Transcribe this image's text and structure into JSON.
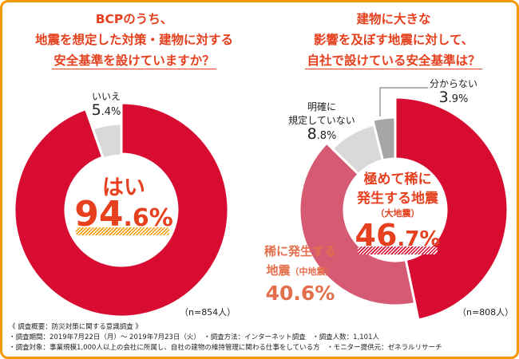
{
  "left": {
    "title": [
      "BCPのうち、",
      "地震を想定した対策・建物に対する",
      "安全基準を設けていますか？"
    ],
    "center_label": "はい",
    "center_value_int": "94",
    "center_value_dec": ".6%",
    "no_label": "いいえ",
    "no_value_int": "5",
    "no_value_dec": ".4%",
    "n": "（n=854人）"
  },
  "right": {
    "title": [
      "建物に大きな",
      "影響を及ぼす地震に対して、",
      "自社で設けている安全基準は？"
    ],
    "center_label_1": "極めて稀に",
    "center_label_2": "発生する地震",
    "center_label_3": "（大地震）",
    "center_value_int": "46",
    "center_value_dec": ".7%",
    "mid_label_1": "稀に発生する",
    "mid_label_2": "地震",
    "mid_label_3": "（中地震）",
    "mid_value": "40.6%",
    "unclear_label_1": "明確に",
    "unclear_label_2": "規定していない",
    "unclear_value_int": "8",
    "unclear_value_dec": ".8%",
    "unknown_label": "分からない",
    "unknown_value_int": "3",
    "unknown_value_dec": ".9%",
    "n": "（n=808人）"
  },
  "notes": [
    "《 調査概要：防災対策に関する意識調査 》",
    "・調査期間：2019年7月22日（月）～ 2019年7月23日（火）　・調査方法：インターネット調査　・調査人数：1,101人",
    "・調査対象：事業規模1,000人以上の会社に所属し、自社の建物の維持管理に関わる仕事をしている方　・モニター提供元：ゼネラルリサーチ"
  ],
  "colors": {
    "accent": "#e6401f",
    "border": "#f39800",
    "red": "#d70c30",
    "pink": "#d65a72",
    "light_gray": "#d9d9d9",
    "gray": "#a6a6a6"
  },
  "chart_data": [
    {
      "type": "pie",
      "title": "BCPのうち、地震を想定した対策・建物に対する安全基準を設けていますか？",
      "categories": [
        "はい",
        "いいえ"
      ],
      "values": [
        94.6,
        5.4
      ],
      "colors": [
        "#d70c30",
        "#d9d9d9"
      ],
      "n": 854
    },
    {
      "type": "pie",
      "title": "建物に大きな影響を及ぼす地震に対して、自社で設けている安全基準は？",
      "categories": [
        "極めて稀に発生する地震（大地震）",
        "稀に発生する地震（中地震）",
        "明確に規定していない",
        "分からない"
      ],
      "values": [
        46.7,
        40.6,
        8.8,
        3.9
      ],
      "colors": [
        "#d70c30",
        "#d65a72",
        "#d9d9d9",
        "#a6a6a6"
      ],
      "n": 808
    }
  ]
}
